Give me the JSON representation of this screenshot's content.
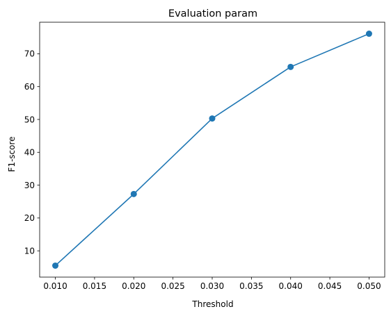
{
  "chart_data": {
    "type": "line",
    "title": "Evaluation param",
    "xlabel": "Threshold",
    "ylabel": "F1-score",
    "x": [
      0.01,
      0.02,
      0.03,
      0.04,
      0.05
    ],
    "series": [
      {
        "values": [
          5.5,
          27.3,
          50.3,
          66.0,
          76.1
        ],
        "color": "#1f77b4",
        "marker": "circle"
      }
    ],
    "xlim": [
      0.008,
      0.052
    ],
    "ylim": [
      2.0,
      79.6
    ],
    "xticks": [
      {
        "value": 0.01,
        "label": "0.010"
      },
      {
        "value": 0.015,
        "label": "0.015"
      },
      {
        "value": 0.02,
        "label": "0.020"
      },
      {
        "value": 0.025,
        "label": "0.025"
      },
      {
        "value": 0.03,
        "label": "0.030"
      },
      {
        "value": 0.035,
        "label": "0.035"
      },
      {
        "value": 0.04,
        "label": "0.040"
      },
      {
        "value": 0.045,
        "label": "0.045"
      },
      {
        "value": 0.05,
        "label": "0.050"
      }
    ],
    "yticks": [
      {
        "value": 10,
        "label": "10"
      },
      {
        "value": 20,
        "label": "20"
      },
      {
        "value": 30,
        "label": "30"
      },
      {
        "value": 40,
        "label": "40"
      },
      {
        "value": 50,
        "label": "50"
      },
      {
        "value": 60,
        "label": "60"
      },
      {
        "value": 70,
        "label": "70"
      }
    ],
    "grid": false,
    "legend": "none"
  }
}
